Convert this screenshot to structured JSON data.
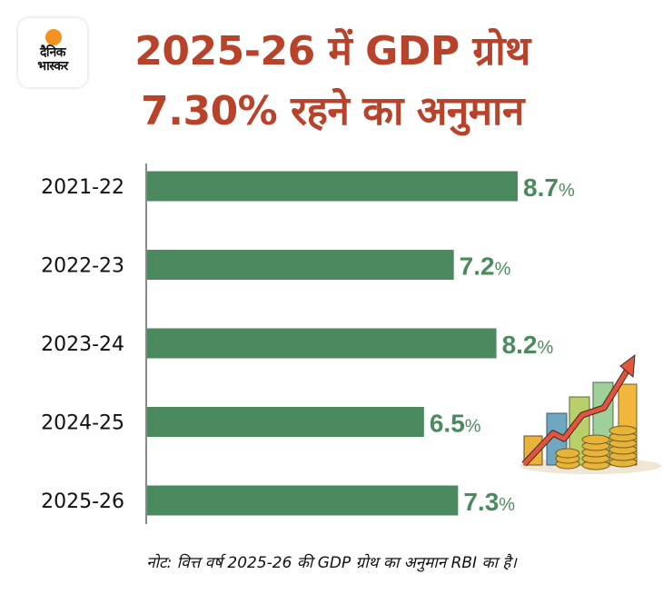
{
  "brand": {
    "logo_text": "दैनिक भास्कर",
    "logo_line1": "दैनिक",
    "logo_line2": "भास्कर"
  },
  "header": {
    "title_line1": "2025-26 में GDP ग्रोथ",
    "title_line2": "7.30% रहने का अनुमान"
  },
  "colors": {
    "title": "#b8432a",
    "bar": "#4b8a5e",
    "axis": "#8a8a8a",
    "logo_sun": "#f39221"
  },
  "chart_data": {
    "type": "bar",
    "orientation": "horizontal",
    "title": "2025-26 में GDP ग्रोथ 7.30% रहने का अनुमान",
    "categories": [
      "2021-22",
      "2022-23",
      "2023-24",
      "2024-25",
      "2025-26"
    ],
    "values": [
      8.7,
      7.2,
      8.2,
      6.5,
      7.3
    ],
    "value_labels": [
      "8.7",
      "7.2",
      "8.2",
      "6.5",
      "7.3"
    ],
    "value_suffix": "%",
    "xlabel": "",
    "ylabel": "",
    "xlim": [
      0,
      9.5
    ],
    "grid": false
  },
  "illustration": {
    "icon": "growth-chart-coins-icon"
  },
  "footer": {
    "note": "नोट: वित्त वर्ष 2025-26 की GDP ग्रोथ का अनुमान RBI का है।"
  }
}
